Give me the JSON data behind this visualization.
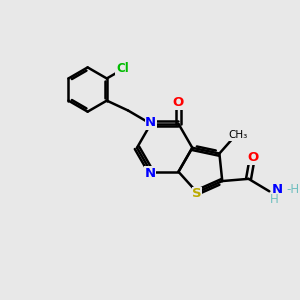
{
  "bg_color": "#e8e8e8",
  "atom_colors": {
    "C": "#000000",
    "N": "#0000ff",
    "O": "#ff0000",
    "S": "#bbaa00",
    "Cl": "#00bb00",
    "H": "#6fbfbf"
  },
  "bond_color": "#000000",
  "bond_width": 1.8
}
